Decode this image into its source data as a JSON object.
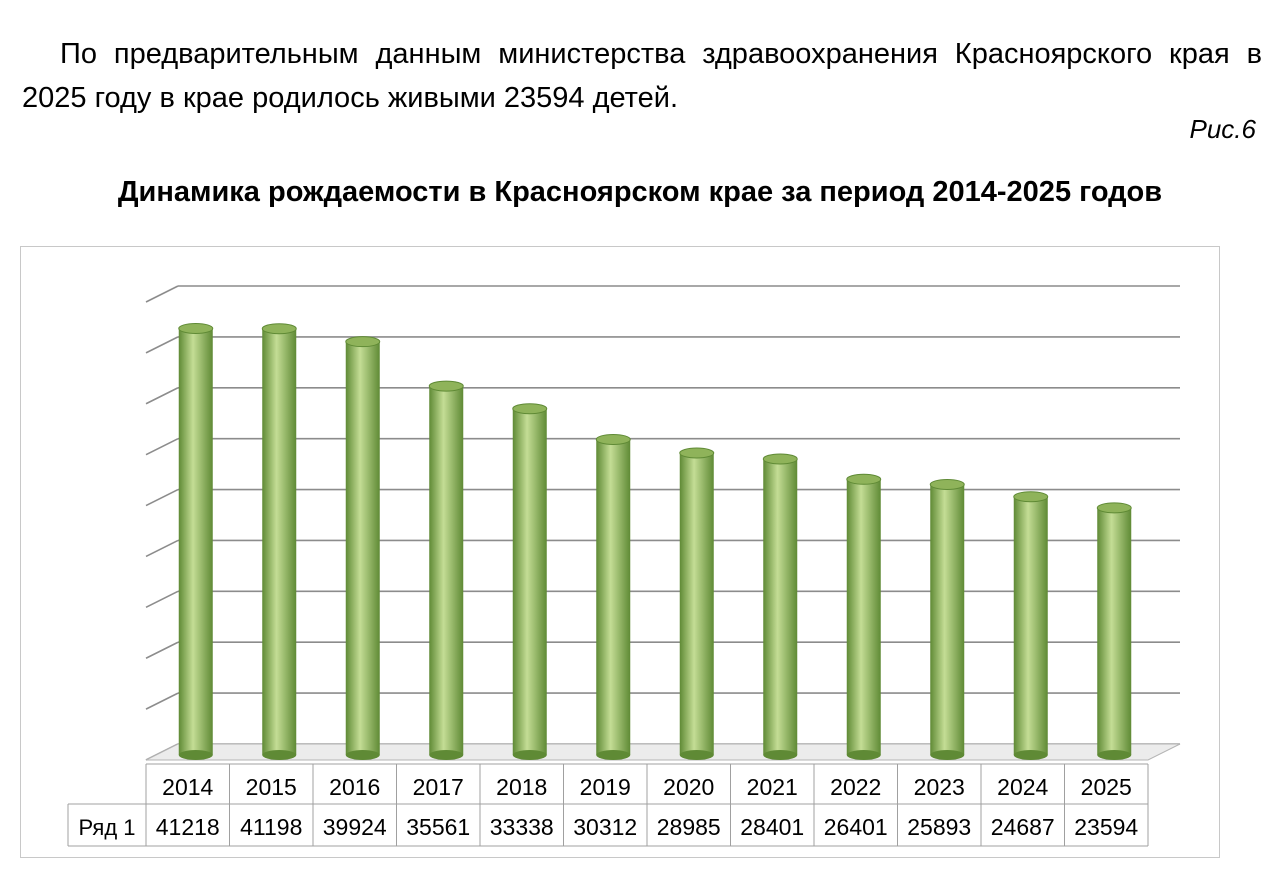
{
  "document": {
    "paragraph": "По предварительным данным министерства здравоохранения Красноярского края в 2025 году в крае родилось живыми 23594 детей.",
    "figure_label": "Рис.6"
  },
  "chart_data": {
    "type": "bar",
    "title": "Динамика рождаемости в Красноярском крае за период 2014-2025 годов",
    "categories": [
      "2014",
      "2015",
      "2016",
      "2017",
      "2018",
      "2019",
      "2020",
      "2021",
      "2022",
      "2023",
      "2024",
      "2025"
    ],
    "series": [
      {
        "name": "Ряд 1",
        "values": [
          41218,
          41198,
          39924,
          35561,
          33338,
          30312,
          28985,
          28401,
          26401,
          25893,
          24687,
          23594
        ]
      }
    ],
    "ylim": [
      0,
      45000
    ],
    "gridlines": 9,
    "grid": true,
    "legend": "data table below chart",
    "bar_color": "#8fb35a",
    "bar_highlight": "#c4dd95",
    "bar_shadow": "#5f8a35"
  }
}
